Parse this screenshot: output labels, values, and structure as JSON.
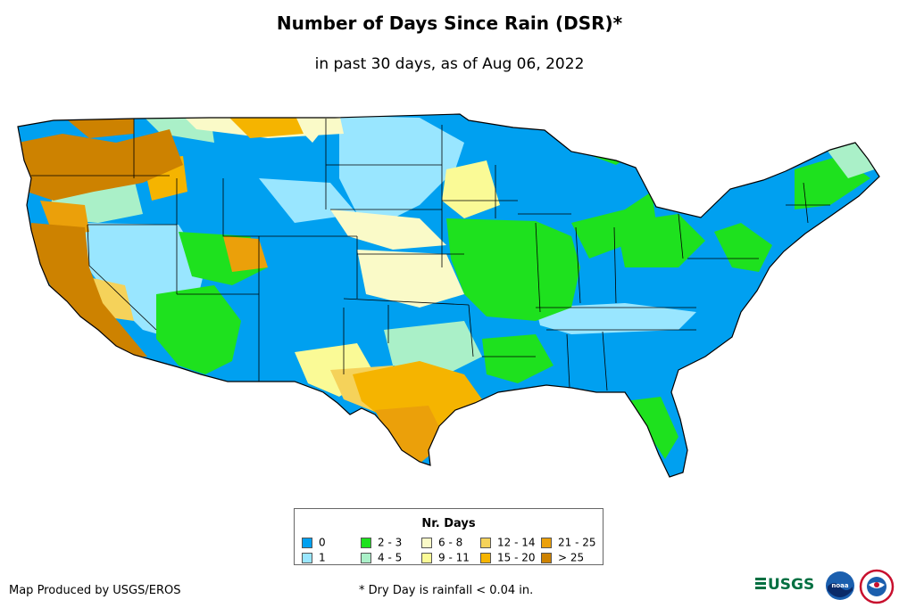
{
  "title": "Number of Days Since Rain (DSR)*",
  "subtitle": "in past 30 days, as of Aug 06, 2022",
  "legend": {
    "title": "Nr. Days",
    "items": [
      {
        "label": "0",
        "color": "#00a0f0"
      },
      {
        "label": "1",
        "color": "#99e6ff"
      },
      {
        "label": "2 - 3",
        "color": "#1ee11e"
      },
      {
        "label": "4 - 5",
        "color": "#aaf0c8"
      },
      {
        "label": "6 - 8",
        "color": "#fafac8"
      },
      {
        "label": "9 - 11",
        "color": "#fafa96"
      },
      {
        "label": "12 - 14",
        "color": "#f5d25a"
      },
      {
        "label": "15 - 20",
        "color": "#f5b400"
      },
      {
        "label": "21 - 25",
        "color": "#eba00a"
      },
      {
        "label": "> 25",
        "color": "#cd8200"
      }
    ]
  },
  "footer": {
    "producer": "Map Produced by USGS/EROS",
    "footnote": "* Dry Day is rainfall < 0.04 in."
  },
  "logos": {
    "usgs": "USGS",
    "noaa": "noaa"
  },
  "icons": [
    "usgs-logo",
    "noaa-logo",
    "nws-logo"
  ]
}
